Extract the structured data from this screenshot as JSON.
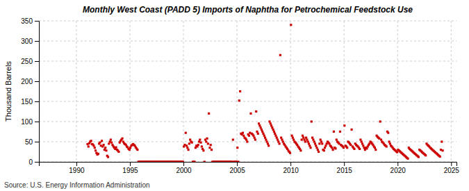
{
  "chart_data": {
    "type": "scatter",
    "title": "Monthly West Coast (PADD 5) Imports of Naphtha for Petrochemical Feedstock Use",
    "ylabel": "Thousand Barrels",
    "source": "Source: U.S. Energy Information Administration",
    "color": "#cc0000",
    "marker": "square",
    "grid": true,
    "xlim": [
      1986.5,
      2025.5
    ],
    "xticks": [
      1990,
      1995,
      2000,
      2005,
      2010,
      2015,
      2020,
      2025
    ],
    "ylim": [
      0,
      350
    ],
    "yticks": [
      0,
      50,
      100,
      150,
      200,
      250,
      300,
      350
    ],
    "x": [
      1991.041667,
      1991.125,
      1991.208333,
      1991.291667,
      1991.375,
      1991.458333,
      1991.541667,
      1991.625,
      1991.708333,
      1991.791667,
      1991.875,
      1991.958333,
      1992.041667,
      1992.125,
      1992.208333,
      1992.291667,
      1992.375,
      1992.458333,
      1992.541667,
      1992.625,
      1992.708333,
      1992.791667,
      1992.875,
      1992.958333,
      1993.041667,
      1993.125,
      1993.208333,
      1993.291667,
      1993.375,
      1993.458333,
      1993.541667,
      1993.625,
      1993.708333,
      1993.791667,
      1993.875,
      1993.958333,
      1994.041667,
      1994.125,
      1994.208333,
      1994.291667,
      1994.375,
      1994.458333,
      1994.541667,
      1994.625,
      1994.708333,
      1994.791667,
      1994.875,
      1994.958333,
      1995.041667,
      1995.125,
      1995.208333,
      1995.291667,
      1995.375,
      1995.458333,
      1995.541667,
      1995.625,
      1995.708333,
      1995.791667,
      1995.875,
      1995.958333,
      1996.041667,
      1996.125,
      1996.208333,
      1996.291667,
      1996.375,
      1996.458333,
      1996.541667,
      1996.625,
      1996.708333,
      1996.791667,
      1996.875,
      1996.958333,
      1997.041667,
      1997.125,
      1997.208333,
      1997.291667,
      1997.375,
      1997.458333,
      1997.541667,
      1997.625,
      1997.708333,
      1997.791667,
      1997.875,
      1997.958333,
      1998.041667,
      1998.125,
      1998.208333,
      1998.291667,
      1998.375,
      1998.458333,
      1998.541667,
      1998.625,
      1998.708333,
      1998.791667,
      1998.875,
      1998.958333,
      1999.041667,
      1999.125,
      1999.208333,
      1999.291667,
      1999.375,
      1999.458333,
      1999.541667,
      1999.625,
      1999.708333,
      1999.791667,
      1999.875,
      1999.958333,
      2000.041667,
      2000.125,
      2000.208333,
      2000.291667,
      2000.375,
      2000.458333,
      2000.541667,
      2000.625,
      2000.708333,
      2000.791667,
      2000.875,
      2000.958333,
      2001.041667,
      2001.125,
      2001.208333,
      2001.291667,
      2001.375,
      2001.458333,
      2001.541667,
      2001.625,
      2001.708333,
      2001.791667,
      2001.875,
      2001.958333,
      2002.041667,
      2002.125,
      2002.208333,
      2002.291667,
      2002.375,
      2002.458333,
      2002.541667,
      2002.625,
      2002.708333,
      2002.791667,
      2002.875,
      2002.958333,
      2003.041667,
      2003.125,
      2003.208333,
      2003.291667,
      2003.375,
      2003.458333,
      2003.541667,
      2003.625,
      2003.708333,
      2003.791667,
      2003.875,
      2003.958333,
      2004.041667,
      2004.125,
      2004.208333,
      2004.291667,
      2004.375,
      2004.458333,
      2004.541667,
      2004.625,
      2004.708333,
      2004.791667,
      2004.875,
      2004.958333,
      2005.041667,
      2005.125,
      2005.208333,
      2005.291667,
      2005.375,
      2005.458333,
      2005.541667,
      2005.625,
      2005.708333,
      2005.791667,
      2005.875,
      2005.958333,
      2006.041667,
      2006.125,
      2006.208333,
      2006.291667,
      2006.375,
      2006.458333,
      2006.541667,
      2006.625,
      2006.708333,
      2006.791667,
      2006.875,
      2006.958333,
      2007.041667,
      2007.125,
      2007.208333,
      2007.291667,
      2007.375,
      2007.458333,
      2007.541667,
      2007.625,
      2007.708333,
      2007.791667,
      2007.875,
      2007.958333,
      2008.041667,
      2008.125,
      2008.208333,
      2008.291667,
      2008.375,
      2008.458333,
      2008.541667,
      2008.625,
      2008.708333,
      2008.791667,
      2008.875,
      2008.958333,
      2009.041667,
      2009.125,
      2009.208333,
      2009.291667,
      2009.375,
      2009.458333,
      2009.541667,
      2009.625,
      2009.708333,
      2009.791667,
      2009.875,
      2009.958333,
      2010.041667,
      2010.125,
      2010.208333,
      2010.291667,
      2010.375,
      2010.458333,
      2010.541667,
      2010.625,
      2010.708333,
      2010.791667,
      2010.875,
      2010.958333,
      2011.041667,
      2011.125,
      2011.208333,
      2011.291667,
      2011.375,
      2011.458333,
      2011.541667,
      2011.625,
      2011.708333,
      2011.791667,
      2011.875,
      2011.958333,
      2012.041667,
      2012.125,
      2012.208333,
      2012.291667,
      2012.375,
      2012.458333,
      2012.541667,
      2012.625,
      2012.708333,
      2012.791667,
      2012.875,
      2012.958333,
      2013.041667,
      2013.125,
      2013.208333,
      2013.291667,
      2013.375,
      2013.458333,
      2013.541667,
      2013.625,
      2013.708333,
      2013.791667,
      2013.875,
      2013.958333,
      2014.041667,
      2014.125,
      2014.208333,
      2014.291667,
      2014.375,
      2014.458333,
      2014.541667,
      2014.625,
      2014.708333,
      2014.791667,
      2014.875,
      2014.958333,
      2015.041667,
      2015.125,
      2015.208333,
      2015.291667,
      2015.375,
      2015.458333,
      2015.541667,
      2015.625,
      2015.708333,
      2015.791667,
      2015.875,
      2015.958333,
      2016.041667,
      2016.125,
      2016.208333,
      2016.291667,
      2016.375,
      2016.458333,
      2016.541667,
      2016.625,
      2016.708333,
      2016.791667,
      2016.875,
      2016.958333,
      2017.041667,
      2017.125,
      2017.208333,
      2017.291667,
      2017.375,
      2017.458333,
      2017.541667,
      2017.625,
      2017.708333,
      2017.791667,
      2017.875,
      2017.958333,
      2018.041667,
      2018.125,
      2018.208333,
      2018.291667,
      2018.375,
      2018.458333,
      2018.541667,
      2018.625,
      2018.708333,
      2018.791667,
      2018.875,
      2018.958333,
      2019.041667,
      2019.125,
      2019.208333,
      2019.291667,
      2019.375,
      2019.458333,
      2019.541667,
      2019.625,
      2019.708333,
      2019.791667,
      2019.875,
      2019.958333,
      2020.041667,
      2020.125,
      2020.208333,
      2020.291667,
      2020.375,
      2020.458333,
      2020.541667,
      2020.625,
      2020.708333,
      2020.791667,
      2020.875,
      2020.958333,
      2021.041667,
      2021.125,
      2021.208333,
      2021.291667,
      2021.375,
      2021.458333,
      2021.541667,
      2021.625,
      2021.708333,
      2021.791667,
      2021.875,
      2021.958333,
      2022.041667,
      2022.125,
      2022.208333,
      2022.291667,
      2022.375,
      2022.458333,
      2022.541667,
      2022.625,
      2022.708333,
      2022.791667,
      2022.875,
      2022.958333,
      2023.041667,
      2023.125,
      2023.208333,
      2023.291667,
      2023.375,
      2023.458333,
      2023.541667,
      2023.625,
      2023.708333,
      2023.791667,
      2023.875,
      2023.958333,
      2024.041667,
      2024.125,
      2024.208333
    ],
    "values": [
      44,
      38,
      46,
      50,
      52,
      44,
      43,
      40,
      35,
      28,
      22,
      18,
      20,
      45,
      48,
      40,
      52,
      38,
      42,
      30,
      35,
      28,
      15,
      12,
      45,
      50,
      55,
      48,
      42,
      38,
      35,
      32,
      36,
      30,
      28,
      25,
      48,
      52,
      55,
      58,
      50,
      46,
      44,
      42,
      38,
      36,
      32,
      30,
      35,
      40,
      42,
      44,
      42,
      40,
      36,
      33,
      30,
      0,
      0,
      0,
      0,
      0,
      0,
      0,
      0,
      0,
      0,
      0,
      0,
      0,
      0,
      0,
      0,
      0,
      0,
      0,
      0,
      0,
      0,
      0,
      0,
      0,
      0,
      0,
      0,
      0,
      0,
      0,
      0,
      0,
      0,
      0,
      0,
      0,
      0,
      0,
      0,
      0,
      0,
      0,
      0,
      0,
      0,
      0,
      0,
      0,
      0,
      0,
      38,
      42,
      72,
      40,
      35,
      30,
      45,
      55,
      50,
      48,
      0,
      0,
      0,
      35,
      40,
      38,
      42,
      50,
      55,
      48,
      38,
      32,
      28,
      0,
      55,
      50,
      58,
      45,
      120,
      35,
      42,
      30,
      0,
      0,
      0,
      0,
      0,
      0,
      0,
      0,
      0,
      0,
      0,
      0,
      0,
      0,
      0,
      0,
      0,
      0,
      0,
      0,
      0,
      0,
      0,
      55,
      0,
      0,
      0,
      0,
      35,
      0,
      152,
      175,
      70,
      68,
      72,
      65,
      60,
      58,
      55,
      50,
      68,
      65,
      72,
      120,
      70,
      68,
      65,
      60,
      55,
      125,
      75,
      70,
      95,
      90,
      85,
      80,
      75,
      70,
      65,
      60,
      55,
      50,
      45,
      40,
      100,
      95,
      90,
      85,
      80,
      75,
      70,
      65,
      60,
      55,
      50,
      45,
      265,
      60,
      55,
      50,
      45,
      42,
      38,
      35,
      32,
      28,
      25,
      22,
      340,
      65,
      60,
      55,
      50,
      48,
      45,
      42,
      38,
      35,
      32,
      28,
      55,
      65,
      60,
      55,
      50,
      60,
      55,
      50,
      45,
      40,
      35,
      100,
      60,
      55,
      50,
      45,
      40,
      35,
      30,
      25,
      45,
      55,
      50,
      45,
      30,
      28,
      35,
      40,
      45,
      50,
      48,
      45,
      40,
      38,
      35,
      30,
      75,
      35,
      33,
      55,
      50,
      48,
      45,
      75,
      42,
      40,
      38,
      35,
      90,
      40,
      38,
      35,
      50,
      48,
      45,
      42,
      80,
      38,
      35,
      32,
      45,
      42,
      40,
      38,
      35,
      32,
      55,
      50,
      45,
      40,
      35,
      30,
      35,
      33,
      38,
      42,
      45,
      50,
      48,
      45,
      42,
      38,
      35,
      30,
      65,
      62,
      60,
      58,
      100,
      55,
      50,
      48,
      45,
      42,
      40,
      38,
      75,
      72,
      50,
      45,
      40,
      38,
      35,
      32,
      30,
      28,
      26,
      24,
      30,
      28,
      26,
      24,
      22,
      20,
      18,
      16,
      14,
      12,
      10,
      8,
      35,
      32,
      30,
      28,
      26,
      24,
      22,
      20,
      18,
      16,
      14,
      12,
      30,
      28,
      26,
      24,
      22,
      20,
      18,
      16,
      45,
      42,
      40,
      38,
      35,
      33,
      31,
      29,
      27,
      25,
      23,
      21,
      19,
      17,
      15,
      13,
      30,
      50,
      28
    ]
  }
}
